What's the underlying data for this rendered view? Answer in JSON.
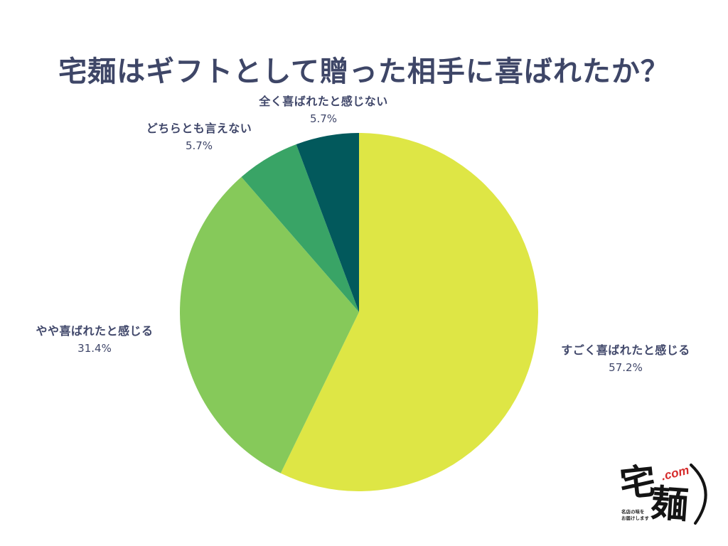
{
  "chart_data": {
    "type": "pie",
    "title": "宅麺はギフトとして贈った相手に喜ばれたか？",
    "categories": [
      "すごく喜ばれたと感じる",
      "やや喜ばれたと感じる",
      "どちらとも言えない",
      "全く喜ばれたと感じない"
    ],
    "values": [
      57.2,
      31.4,
      5.7,
      5.7
    ],
    "value_labels": [
      "57.2%",
      "31.4%",
      "5.7%",
      "5.7%"
    ],
    "colors": [
      "#dee645",
      "#86c95a",
      "#39a466",
      "#02595c"
    ],
    "start": "top",
    "direction": "clockwise",
    "labels_placement": "outside",
    "legend": "none"
  },
  "logo": {
    "brand": "宅麺",
    "suffix": ".com",
    "tagline": [
      "名店の味を",
      "お届けします"
    ]
  }
}
